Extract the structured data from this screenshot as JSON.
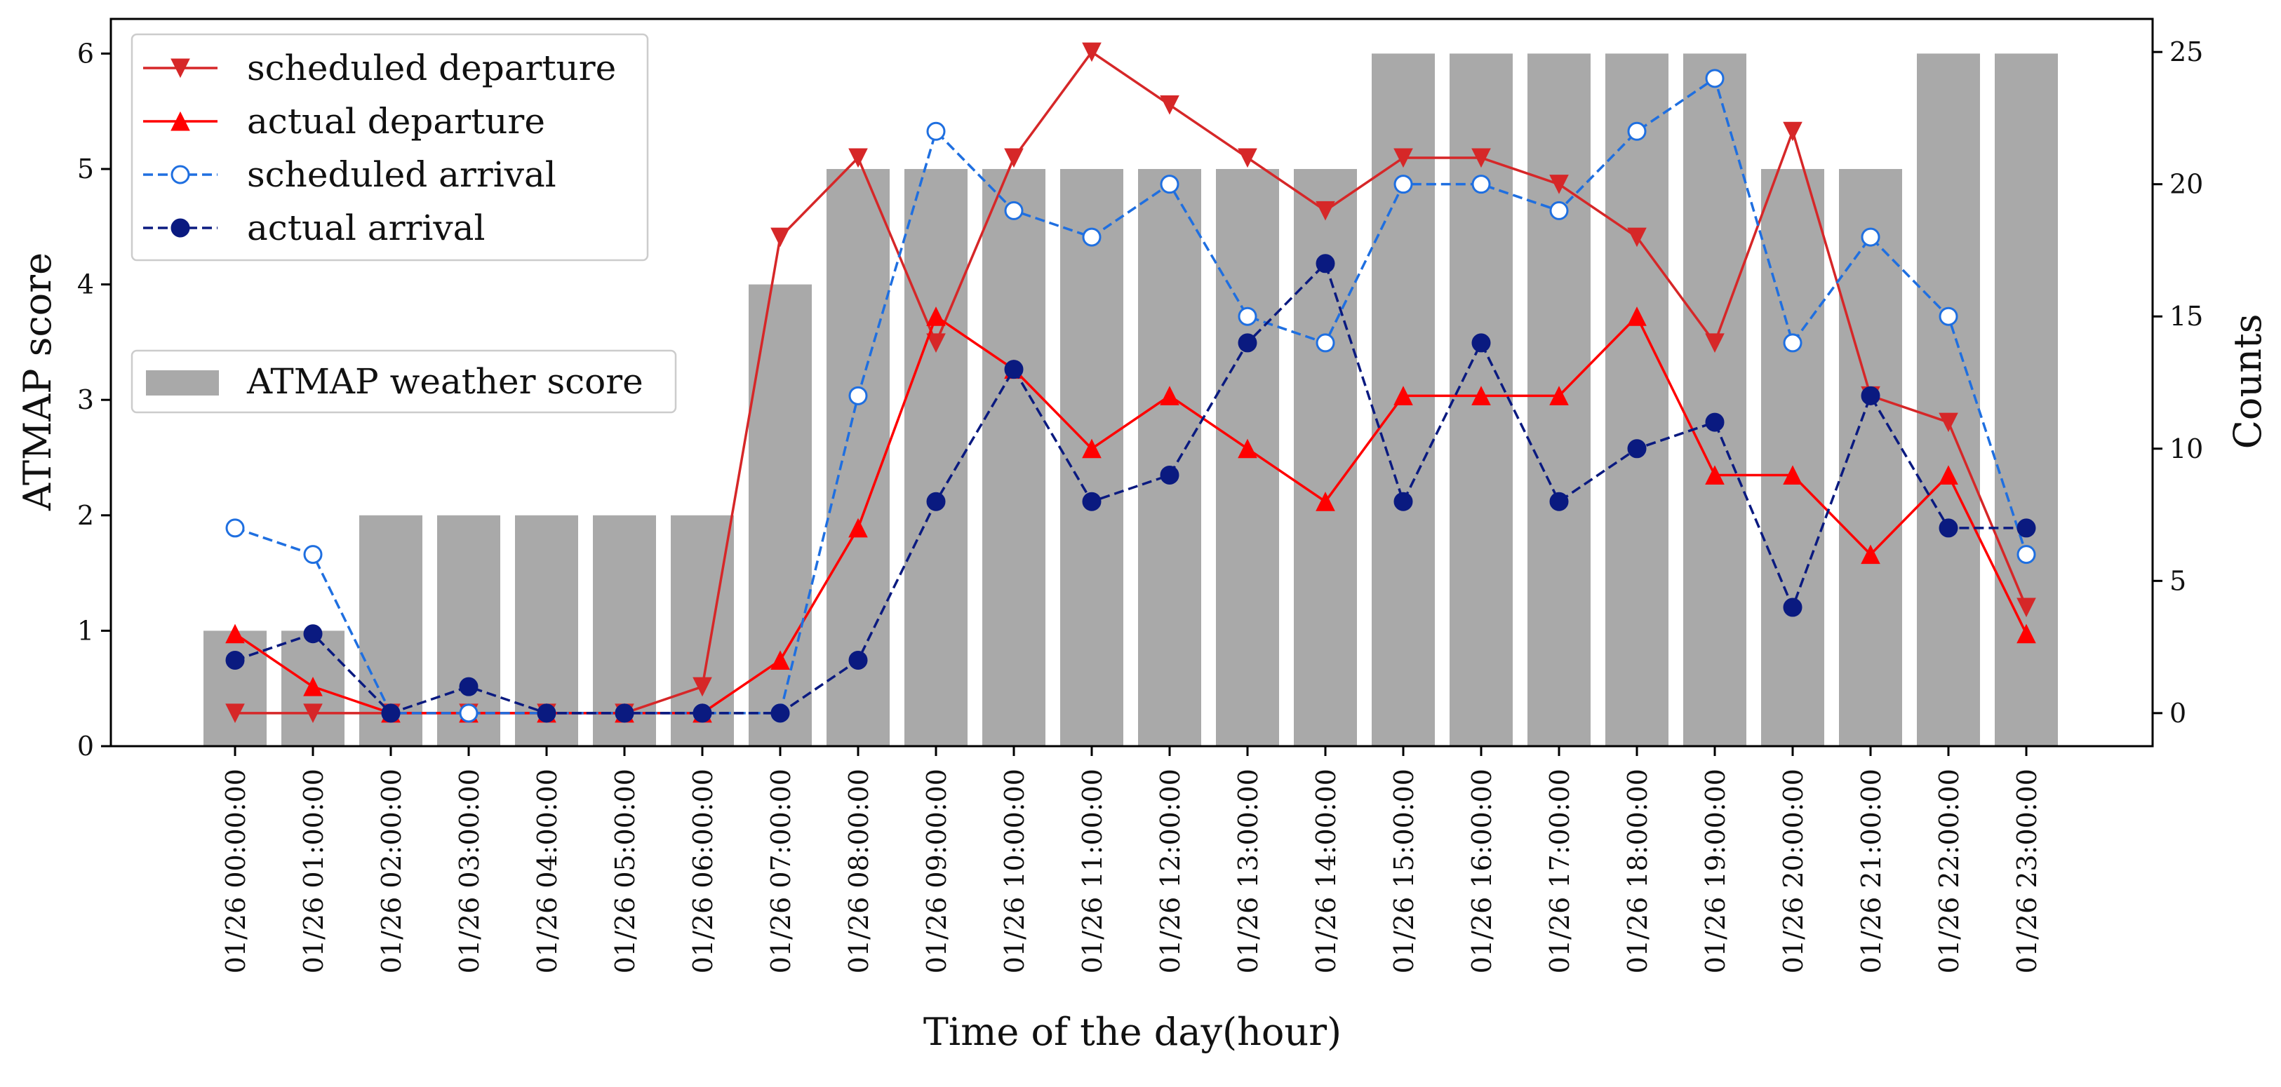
{
  "chart_data": {
    "type": "bar+line",
    "xlabel": "Time of the day(hour)",
    "ylabel_left": "ATMAP score",
    "ylabel_right": "Counts",
    "ylim_left": [
      0,
      6.3
    ],
    "ylim_right": [
      -1.25,
      26.25
    ],
    "yticks_left": [
      0,
      1,
      2,
      3,
      4,
      5,
      6
    ],
    "yticks_right": [
      0,
      5,
      10,
      15,
      20,
      25
    ],
    "categories": [
      "01/26 00:00:00",
      "01/26 01:00:00",
      "01/26 02:00:00",
      "01/26 03:00:00",
      "01/26 04:00:00",
      "01/26 05:00:00",
      "01/26 06:00:00",
      "01/26 07:00:00",
      "01/26 08:00:00",
      "01/26 09:00:00",
      "01/26 10:00:00",
      "01/26 11:00:00",
      "01/26 12:00:00",
      "01/26 13:00:00",
      "01/26 14:00:00",
      "01/26 15:00:00",
      "01/26 16:00:00",
      "01/26 17:00:00",
      "01/26 18:00:00",
      "01/26 19:00:00",
      "01/26 20:00:00",
      "01/26 21:00:00",
      "01/26 22:00:00",
      "01/26 23:00:00"
    ],
    "bars": {
      "name": "ATMAP weather score",
      "axis": "left",
      "color": "#a9a9a9",
      "values": [
        1,
        1,
        2,
        2,
        2,
        2,
        2,
        4,
        5,
        5,
        5,
        5,
        5,
        5,
        5,
        6,
        6,
        6,
        6,
        6,
        5,
        5,
        6,
        6
      ]
    },
    "series": [
      {
        "name": "scheduled departure",
        "axis": "right",
        "color": "#d62728",
        "linestyle": "solid",
        "marker": "triangle-down",
        "values": [
          0,
          0,
          0,
          0,
          0,
          0,
          1,
          18,
          21,
          14,
          21,
          25,
          23,
          21,
          19,
          21,
          21,
          20,
          18,
          14,
          22,
          12,
          11,
          4
        ]
      },
      {
        "name": "actual departure",
        "axis": "right",
        "color": "#ff0000",
        "linestyle": "solid",
        "marker": "triangle-up",
        "values": [
          3,
          1,
          0,
          0,
          0,
          0,
          0,
          2,
          7,
          15,
          13,
          10,
          12,
          10,
          8,
          12,
          12,
          12,
          15,
          9,
          9,
          6,
          9,
          3
        ]
      },
      {
        "name": "scheduled arrival",
        "axis": "right",
        "color": "#1f6fe0",
        "linestyle": "dashed",
        "marker": "circle-open",
        "values": [
          7,
          6,
          0,
          0,
          0,
          0,
          0,
          0,
          12,
          22,
          19,
          18,
          20,
          15,
          14,
          20,
          20,
          19,
          22,
          24,
          14,
          18,
          15,
          6
        ]
      },
      {
        "name": "actual arrival",
        "axis": "right",
        "color": "#0a1a80",
        "linestyle": "dashed",
        "marker": "circle-filled",
        "values": [
          2,
          3,
          0,
          1,
          0,
          0,
          0,
          0,
          2,
          8,
          13,
          8,
          9,
          14,
          17,
          8,
          14,
          8,
          10,
          11,
          4,
          12,
          7,
          7
        ]
      }
    ],
    "legend_upper": [
      "scheduled departure",
      "actual departure",
      "scheduled arrival",
      "actual arrival"
    ],
    "legend_lower": [
      "ATMAP weather score"
    ],
    "legend_placement": "top-left"
  }
}
